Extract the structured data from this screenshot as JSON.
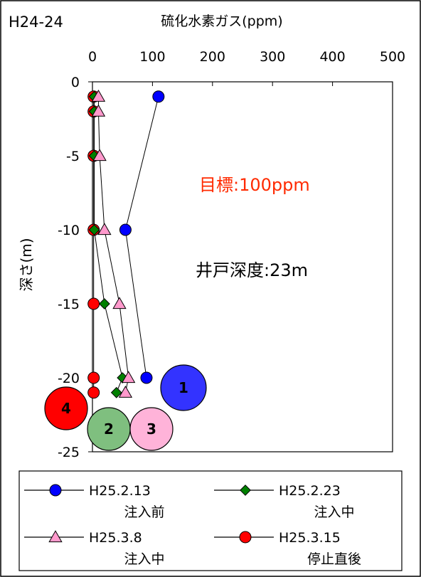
{
  "chart_data": {
    "type": "scatter",
    "id_label": "H24-24",
    "xlabel": "硫化水素ガス(ppm)",
    "ylabel": "深さ(m)",
    "xlim": [
      0,
      500
    ],
    "ylim": [
      -25,
      0
    ],
    "x_ticks": [
      0,
      100,
      200,
      300,
      400,
      500
    ],
    "y_ticks": [
      0,
      -5,
      -10,
      -15,
      -20,
      -25
    ],
    "x_axis_position": "top",
    "grid": false,
    "legend_position": "bottom",
    "annotations": {
      "target": "目標:100ppm",
      "well_depth": "井戸深度:23m"
    },
    "colors": {
      "target_text": "#ff2a00",
      "series_blue": "#0000ff",
      "series_green": "#008000",
      "series_pink": "#ff99cc",
      "series_red": "#ff0000"
    },
    "series": [
      {
        "name": "H25.2.13",
        "status": "注入前",
        "marker": "circle",
        "color": "#0000ff",
        "points": [
          [
            110,
            -1
          ],
          [
            55,
            -10
          ],
          [
            90,
            -20
          ]
        ]
      },
      {
        "name": "H25.2.23",
        "status": "注入中",
        "marker": "diamond",
        "color": "#008000",
        "points": [
          [
            3,
            -1
          ],
          [
            3,
            -2
          ],
          [
            3,
            -5
          ],
          [
            3,
            -10
          ],
          [
            20,
            -15
          ],
          [
            50,
            -20
          ],
          [
            40,
            -21
          ]
        ]
      },
      {
        "name": "H25.3.8",
        "status": "注入中",
        "marker": "triangle",
        "color": "#ff99cc",
        "points": [
          [
            10,
            -1
          ],
          [
            10,
            -2
          ],
          [
            12,
            -5
          ],
          [
            20,
            -10
          ],
          [
            45,
            -15
          ],
          [
            60,
            -20
          ],
          [
            55,
            -21
          ]
        ]
      },
      {
        "name": "H25.3.15",
        "status": "停止直後",
        "marker": "circle",
        "color": "#ff0000",
        "points": [
          [
            2,
            -1
          ],
          [
            2,
            -2
          ],
          [
            2,
            -5
          ],
          [
            2,
            -10
          ],
          [
            2,
            -15
          ],
          [
            2,
            -20
          ],
          [
            2,
            -21
          ]
        ]
      }
    ],
    "badges": [
      {
        "label": "1",
        "color": "#3333ff"
      },
      {
        "label": "2",
        "color": "#7fbf7f"
      },
      {
        "label": "3",
        "color": "#ffb3d9"
      },
      {
        "label": "4",
        "color": "#ff0000"
      }
    ]
  }
}
